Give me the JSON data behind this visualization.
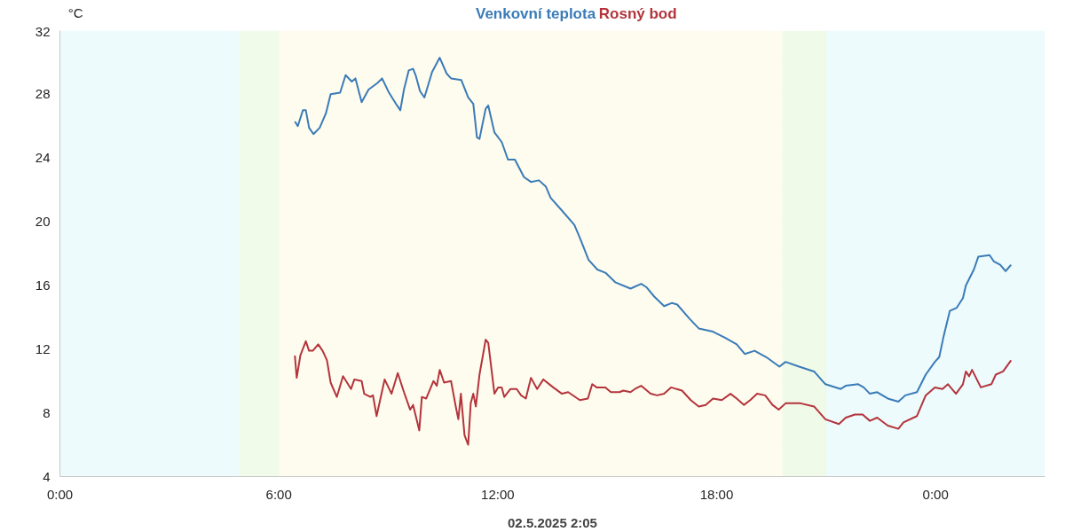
{
  "chart_data": {
    "type": "line",
    "xlabel": "02.5.2025 2:05",
    "ylabel": "°C",
    "xlim": [
      0,
      27
    ],
    "ylim": [
      4,
      32
    ],
    "xticks": [
      {
        "value": 0,
        "label": "0:00"
      },
      {
        "value": 3,
        "label": null
      },
      {
        "value": 6,
        "label": "6:00"
      },
      {
        "value": 9,
        "label": null
      },
      {
        "value": 12,
        "label": "12:00"
      },
      {
        "value": 15,
        "label": null
      },
      {
        "value": 18,
        "label": "18:00"
      },
      {
        "value": 21,
        "label": null
      },
      {
        "value": 24,
        "label": "0:00"
      }
    ],
    "yticks": [
      4,
      {
        "value": 6,
        "label": null
      },
      8,
      {
        "value": 10,
        "label": null
      },
      12,
      {
        "value": 14,
        "label": null
      },
      16,
      {
        "value": 18,
        "label": null
      },
      20,
      {
        "value": 22,
        "label": null
      },
      24,
      {
        "value": 26,
        "label": null
      },
      28,
      {
        "value": 30,
        "label": null
      },
      32
    ],
    "grid": true,
    "line_style": "solid",
    "marker": "none",
    "bands": [
      {
        "axis": "x",
        "from": 0,
        "to": 4.9,
        "color": "#edfbfc"
      },
      {
        "axis": "x",
        "from": 4.9,
        "to": 6.0,
        "color": "#f1fbe9"
      },
      {
        "axis": "x",
        "from": 6.0,
        "to": 19.8,
        "color": "#fefcee"
      },
      {
        "axis": "x",
        "from": 19.8,
        "to": 21.0,
        "color": "#effbe8"
      },
      {
        "axis": "x",
        "from": 21.0,
        "to": 27,
        "color": "#edfbfc"
      }
    ],
    "series": [
      {
        "name": "Venkovní teplota",
        "color": "#3a7bb8",
        "x": [
          6.44,
          6.52,
          6.66,
          6.74,
          6.83,
          6.95,
          7.12,
          7.29,
          7.42,
          7.68,
          7.83,
          8.0,
          8.1,
          8.27,
          8.46,
          8.7,
          8.83,
          9.02,
          9.24,
          9.33,
          9.43,
          9.56,
          9.68,
          9.75,
          9.87,
          9.99,
          10.2,
          10.41,
          10.6,
          10.72,
          11.0,
          11.19,
          11.33,
          11.43,
          11.5,
          11.67,
          11.74,
          11.91,
          12.11,
          12.28,
          12.47,
          12.72,
          12.91,
          13.13,
          13.32,
          13.45,
          13.76,
          14.1,
          14.25,
          14.49,
          14.73,
          14.95,
          15.22,
          15.64,
          15.93,
          16.07,
          16.29,
          16.56,
          16.78,
          16.92,
          17.26,
          17.51,
          17.9,
          18.24,
          18.55,
          18.77,
          19.04,
          19.36,
          19.72,
          19.89,
          20.26,
          20.67,
          20.98,
          21.4,
          21.54,
          21.88,
          22.03,
          22.2,
          22.4,
          22.69,
          22.98,
          23.17,
          23.49,
          23.73,
          23.98,
          24.1,
          24.22,
          24.39,
          24.58,
          24.75,
          24.83,
          25.05,
          25.17,
          25.48,
          25.6,
          25.77,
          25.92,
          26.07
        ],
        "values": [
          26.3,
          26.0,
          27.0,
          27.0,
          25.9,
          25.5,
          25.9,
          26.8,
          28.0,
          28.1,
          29.2,
          28.8,
          29.0,
          27.5,
          28.3,
          28.7,
          29.0,
          28.1,
          27.3,
          27.0,
          28.3,
          29.5,
          29.6,
          29.2,
          28.2,
          27.8,
          29.4,
          30.3,
          29.3,
          29.0,
          28.9,
          27.8,
          27.4,
          25.3,
          25.2,
          27.1,
          27.3,
          25.6,
          25.0,
          23.9,
          23.9,
          22.8,
          22.5,
          22.6,
          22.2,
          21.5,
          20.7,
          19.8,
          19.0,
          17.6,
          17.0,
          16.8,
          16.2,
          15.8,
          16.1,
          15.9,
          15.3,
          14.7,
          14.9,
          14.8,
          13.9,
          13.3,
          13.1,
          12.7,
          12.3,
          11.7,
          11.9,
          11.5,
          10.9,
          11.2,
          10.9,
          10.6,
          9.8,
          9.5,
          9.7,
          9.8,
          9.6,
          9.2,
          9.3,
          8.9,
          8.7,
          9.1,
          9.3,
          10.4,
          11.2,
          11.5,
          12.8,
          14.4,
          14.6,
          15.2,
          16.0,
          17.0,
          17.8,
          17.9,
          17.5,
          17.3,
          16.9,
          17.3
        ]
      },
      {
        "name": "Rosný bod",
        "color": "#b3343c",
        "x": [
          6.44,
          6.49,
          6.59,
          6.74,
          6.83,
          6.93,
          7.08,
          7.2,
          7.32,
          7.42,
          7.59,
          7.76,
          7.98,
          8.07,
          8.27,
          8.34,
          8.51,
          8.58,
          8.68,
          8.9,
          9.09,
          9.26,
          9.43,
          9.6,
          9.68,
          9.85,
          9.92,
          10.04,
          10.24,
          10.33,
          10.41,
          10.53,
          10.72,
          10.85,
          10.92,
          10.99,
          11.09,
          11.19,
          11.26,
          11.33,
          11.4,
          11.5,
          11.67,
          11.74,
          11.91,
          12.01,
          12.11,
          12.18,
          12.35,
          12.52,
          12.64,
          12.77,
          12.91,
          13.08,
          13.25,
          13.52,
          13.76,
          13.93,
          14.25,
          14.47,
          14.59,
          14.71,
          14.95,
          15.1,
          15.34,
          15.44,
          15.64,
          15.76,
          15.93,
          16.19,
          16.37,
          16.56,
          16.75,
          17.05,
          17.29,
          17.51,
          17.7,
          17.9,
          18.14,
          18.38,
          18.55,
          18.75,
          18.92,
          19.11,
          19.33,
          19.53,
          19.7,
          19.89,
          20.18,
          20.3,
          20.67,
          20.98,
          21.35,
          21.54,
          21.79,
          22.0,
          22.2,
          22.4,
          22.69,
          22.98,
          23.12,
          23.49,
          23.73,
          23.98,
          24.19,
          24.34,
          24.56,
          24.75,
          24.83,
          24.92,
          25.0,
          25.24,
          25.53,
          25.65,
          25.85,
          26.07
        ],
        "values": [
          11.6,
          10.2,
          11.6,
          12.5,
          11.9,
          11.9,
          12.3,
          11.9,
          11.3,
          9.9,
          9.0,
          10.3,
          9.5,
          10.1,
          10.0,
          9.2,
          9.0,
          9.1,
          7.8,
          10.1,
          9.2,
          10.5,
          9.3,
          8.2,
          8.5,
          6.9,
          9.0,
          8.9,
          10.0,
          9.7,
          10.7,
          9.9,
          10.0,
          8.4,
          7.6,
          9.2,
          6.6,
          6.0,
          8.6,
          9.2,
          8.4,
          10.4,
          12.6,
          12.4,
          9.2,
          9.6,
          9.6,
          9.0,
          9.5,
          9.5,
          9.1,
          8.9,
          10.2,
          9.5,
          10.1,
          9.6,
          9.2,
          9.3,
          8.8,
          8.9,
          9.8,
          9.6,
          9.6,
          9.3,
          9.3,
          9.4,
          9.3,
          9.5,
          9.7,
          9.2,
          9.1,
          9.2,
          9.6,
          9.4,
          8.8,
          8.4,
          8.5,
          8.9,
          8.8,
          9.2,
          8.9,
          8.5,
          8.8,
          9.2,
          9.1,
          8.5,
          8.2,
          8.6,
          8.6,
          8.6,
          8.4,
          7.6,
          7.3,
          7.7,
          7.9,
          7.9,
          7.5,
          7.7,
          7.2,
          7.0,
          7.4,
          7.8,
          9.1,
          9.6,
          9.5,
          9.8,
          9.2,
          9.8,
          10.6,
          10.3,
          10.7,
          9.6,
          9.8,
          10.4,
          10.6,
          11.3
        ]
      }
    ]
  }
}
